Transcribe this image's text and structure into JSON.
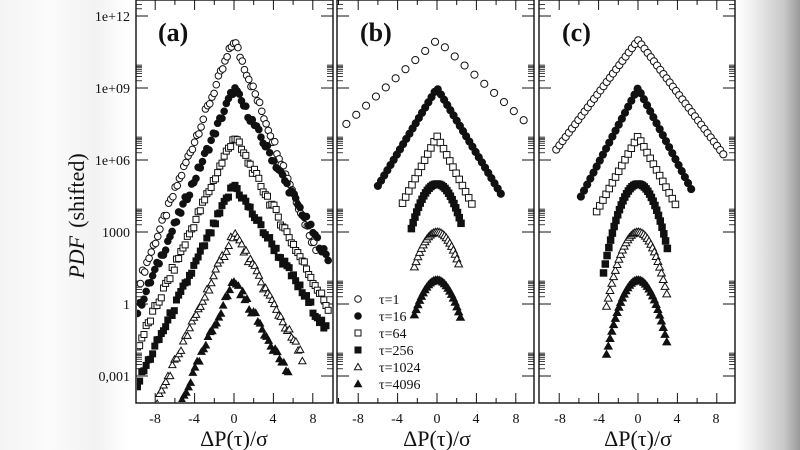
{
  "figure": {
    "ylabel_italic": "PDF",
    "ylabel_rest": "(shifted)",
    "xlabel": "ΔP(τ)/σ",
    "panels": [
      {
        "id": "a",
        "label": "(a)"
      },
      {
        "id": "b",
        "label": "(b)"
      },
      {
        "id": "c",
        "label": "(c)"
      }
    ],
    "yticks": [
      "1e+12",
      "1e+09",
      "1e+06",
      "1000",
      "1",
      "0,001"
    ],
    "xticks": [
      "-8",
      "-4",
      "0",
      "4",
      "8"
    ],
    "legend": [
      {
        "marker": "open-circle",
        "label": "τ=1"
      },
      {
        "marker": "filled-circle",
        "label": "τ=16"
      },
      {
        "marker": "open-square",
        "label": "τ=64"
      },
      {
        "marker": "filled-square",
        "label": "τ=256"
      },
      {
        "marker": "open-triangle",
        "label": "τ=1024"
      },
      {
        "marker": "filled-triangle",
        "label": "τ=4096"
      }
    ]
  },
  "chart_data": [
    {
      "type": "scatter",
      "title": "(a)",
      "xlabel": "ΔP(τ)/σ",
      "ylabel": "PDF (shifted)",
      "yscale": "log",
      "xlim": [
        -10,
        10
      ],
      "ylim": [
        0.0001,
        1000000000000.0
      ],
      "xticks": [
        -8,
        -4,
        0,
        4,
        8
      ],
      "yticks": [
        1000000000000.0,
        1000000000.0,
        1000000.0,
        1000,
        1,
        0.001
      ],
      "series": [
        {
          "name": "τ=1",
          "marker": "open-circle",
          "peak": 100000000000.0,
          "slope_left": 1.05,
          "slope_right": 1.05,
          "xmin": -9.5,
          "xmax": 8.5,
          "shape": "cusp"
        },
        {
          "name": "τ=16",
          "marker": "filled-circle",
          "peak": 1000000000.0,
          "slope_left": 0.95,
          "slope_right": 0.75,
          "xmin": -9.8,
          "xmax": 9.6,
          "shape": "cusp"
        },
        {
          "name": "τ=64",
          "marker": "open-square",
          "peak": 10000000.0,
          "slope_left": 0.9,
          "slope_right": 0.75,
          "xmin": -9.8,
          "xmax": 9.7,
          "shape": "cusp"
        },
        {
          "name": "τ=256",
          "marker": "filled-square",
          "peak": 100000.0,
          "slope_left": 0.85,
          "slope_right": 0.65,
          "xmin": -9.8,
          "xmax": 9.5,
          "shape": "cusp"
        },
        {
          "name": "τ=1024",
          "marker": "open-triangle",
          "peak": 1000,
          "slope_left": 0.9,
          "slope_right": 0.75,
          "xmin": -7.8,
          "xmax": 7.0,
          "shape": "cusp"
        },
        {
          "name": "τ=4096",
          "marker": "filled-triangle",
          "peak": 10,
          "slope_left": 0.95,
          "slope_right": 0.7,
          "xmin": -5.5,
          "xmax": 5.5,
          "shape": "cusp"
        }
      ]
    },
    {
      "type": "scatter",
      "title": "(b)",
      "xlabel": "ΔP(τ)/σ",
      "yscale": "log",
      "xlim": [
        -10,
        10
      ],
      "xticks": [
        -8,
        -4,
        0,
        4,
        8
      ],
      "series": [
        {
          "name": "τ=1",
          "marker": "open-circle",
          "peak": 100000000000.0,
          "slope_left": 0.38,
          "slope_right": 0.38,
          "xmin": -9.2,
          "xmax": 8.8,
          "step": 1.0,
          "shape": "cusp"
        },
        {
          "name": "τ=16",
          "marker": "filled-circle",
          "peak": 1000000000.0,
          "slope_left": 0.68,
          "slope_right": 0.68,
          "xmin": -6.0,
          "xmax": 6.5,
          "shape": "cusp"
        },
        {
          "name": "τ=64",
          "marker": "open-square",
          "peak": 10000000.0,
          "slope_left": 0.8,
          "slope_right": 0.8,
          "xmin": -3.5,
          "xmax": 3.8,
          "shape": "cusp"
        },
        {
          "name": "τ=256",
          "marker": "filled-square",
          "peak": 100000.0,
          "slope_left": 0.5,
          "slope_right": 0.5,
          "xmin": -2.6,
          "xmax": 2.6,
          "shape": "round"
        },
        {
          "name": "τ=1024",
          "marker": "open-triangle",
          "peak": 1000,
          "slope_left": 0.5,
          "slope_right": 0.5,
          "xmin": -2.3,
          "xmax": 2.3,
          "shape": "round"
        },
        {
          "name": "τ=4096",
          "marker": "filled-triangle",
          "peak": 10,
          "slope_left": 0.5,
          "slope_right": 0.5,
          "xmin": -2.3,
          "xmax": 2.5,
          "shape": "round"
        }
      ]
    },
    {
      "type": "scatter",
      "title": "(c)",
      "xlabel": "ΔP(τ)/σ",
      "yscale": "log",
      "xlim": [
        -10,
        10
      ],
      "xticks": [
        -8,
        -4,
        0,
        4,
        8
      ],
      "series": [
        {
          "name": "τ=1",
          "marker": "open-circle",
          "peak": 100000000000.0,
          "slope_left": 0.55,
          "slope_right": 0.55,
          "xmin": -8.3,
          "xmax": 8.8,
          "shape": "cusp"
        },
        {
          "name": "τ=16",
          "marker": "filled-circle",
          "peak": 1000000000.0,
          "slope_left": 0.78,
          "slope_right": 0.78,
          "xmin": -5.8,
          "xmax": 5.5,
          "shape": "cusp"
        },
        {
          "name": "τ=64",
          "marker": "open-square",
          "peak": 10000000.0,
          "slope_left": 0.75,
          "slope_right": 0.75,
          "xmin": -4.2,
          "xmax": 4.0,
          "shape": "cusp"
        },
        {
          "name": "τ=256",
          "marker": "filled-square",
          "peak": 100000.0,
          "slope_left": 0.55,
          "slope_right": 0.55,
          "xmin": -3.5,
          "xmax": 3.0,
          "shape": "round"
        },
        {
          "name": "τ=1024",
          "marker": "open-triangle",
          "peak": 1000,
          "slope_left": 0.55,
          "slope_right": 0.55,
          "xmin": -3.2,
          "xmax": 3.0,
          "shape": "round"
        },
        {
          "name": "τ=4096",
          "marker": "filled-triangle",
          "peak": 10,
          "slope_left": 0.55,
          "slope_right": 0.55,
          "xmin": -3.2,
          "xmax": 3.0,
          "shape": "round"
        }
      ]
    }
  ]
}
